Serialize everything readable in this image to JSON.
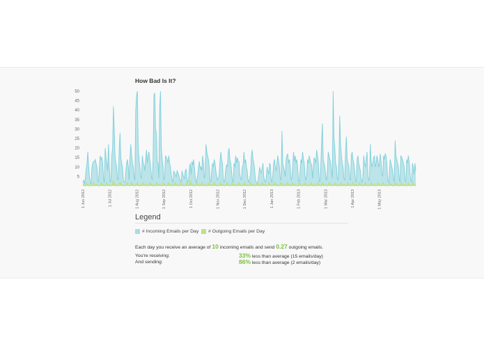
{
  "title": "How Bad Is It?",
  "legend": {
    "heading": "Legend",
    "incoming_label": "# Incoming Emails per Day",
    "outgoing_label": "# Outgoing Emails per Day"
  },
  "summary": {
    "prefix": "Each day you receive an average of ",
    "incoming_avg": "10",
    "middle": " incoming emails and send ",
    "outgoing_avg": "0.27",
    "suffix": " outgoing emails."
  },
  "stats": {
    "receiving_label": "You're receiving:",
    "receiving_pct": "33%",
    "receiving_text": " less than average (15 emails/day)",
    "sending_label": "And sending:",
    "sending_pct": "86%",
    "sending_text": " less than average (2 emails/day)"
  },
  "colors": {
    "incoming_fill": "#a8dde4",
    "incoming_line": "#7fd0dc",
    "outgoing": "#bfe08a",
    "highlight": "#7cbf3c"
  },
  "chart_data": {
    "type": "area",
    "title": "How Bad Is It?",
    "xlabel": "",
    "ylabel": "",
    "ylim": [
      0,
      50
    ],
    "yticks": [
      5,
      10,
      15,
      20,
      25,
      30,
      35,
      40,
      45,
      50
    ],
    "x_tick_labels": [
      "1 Jun 2012",
      "1 Jul 2012",
      "1 Aug 2012",
      "1 Sep 2012",
      "1 Oct 2012",
      "1 Nov 2012",
      "1 Dec 2012",
      "1 Jan 2013",
      "1 Feb 2013",
      "1 Mar 2013",
      "1 Apr 2013",
      "1 May 2013"
    ],
    "grid": false,
    "series": [
      {
        "name": "# Incoming Emails per Day",
        "color": "#7fd0dc",
        "values": [
          2,
          3,
          1,
          4,
          9,
          12,
          18,
          10,
          5,
          2,
          1,
          10,
          12,
          13,
          13,
          14,
          12,
          10,
          3,
          2,
          10,
          16,
          14,
          15,
          12,
          4,
          2,
          20,
          15,
          12,
          8,
          22,
          10,
          2,
          3,
          16,
          20,
          42,
          30,
          15,
          12,
          10,
          3,
          4,
          20,
          28,
          15,
          12,
          10,
          3,
          2,
          2,
          8,
          12,
          14,
          10,
          3,
          15,
          22,
          16,
          12,
          10,
          5,
          3,
          40,
          48,
          50,
          20,
          14,
          10,
          5,
          4,
          16,
          12,
          11,
          8,
          14,
          19,
          12,
          16,
          18,
          14,
          10,
          5,
          3,
          14,
          48,
          49,
          30,
          28,
          13,
          12,
          4,
          42,
          50,
          20,
          14,
          10,
          3,
          5,
          16,
          15,
          14,
          12,
          16,
          12,
          10,
          6,
          3,
          2,
          8,
          7,
          6,
          5,
          8,
          7,
          6,
          4,
          3,
          2,
          8,
          6,
          5,
          4,
          8,
          9,
          4,
          2,
          3,
          10,
          12,
          6,
          13,
          11,
          14,
          10,
          5,
          2,
          3,
          6,
          10,
          13,
          9,
          10,
          8,
          16,
          12,
          4,
          6,
          22,
          18,
          16,
          14,
          10,
          3,
          2,
          8,
          12,
          10,
          14,
          12,
          8,
          5,
          3,
          4,
          6,
          13,
          18,
          14,
          12,
          3,
          2,
          4,
          9,
          11,
          10,
          18,
          20,
          14,
          12,
          8,
          3,
          2,
          12,
          10,
          16,
          12,
          15,
          13,
          13,
          6,
          4,
          3,
          10,
          11,
          18,
          12,
          14,
          10,
          8,
          3,
          2,
          4,
          6,
          16,
          19,
          14,
          12,
          8,
          3,
          2,
          1,
          3,
          6,
          10,
          8,
          7,
          9,
          12,
          5,
          3,
          2,
          4,
          10,
          8,
          6,
          12,
          11,
          3,
          2,
          6,
          12,
          14,
          10,
          8,
          12,
          16,
          13,
          10,
          3,
          4,
          29,
          12,
          10,
          8,
          5,
          14,
          16,
          17,
          12,
          14,
          10,
          3,
          4,
          10,
          18,
          13,
          16,
          12,
          14,
          10,
          3,
          2,
          8,
          14,
          12,
          18,
          14,
          12,
          5,
          3,
          6,
          14,
          12,
          16,
          14,
          12,
          11,
          4,
          10,
          15,
          14,
          12,
          19,
          16,
          13,
          3,
          2,
          10,
          23,
          33,
          14,
          12,
          10,
          5,
          3,
          8,
          18,
          16,
          14,
          12,
          8,
          4,
          50,
          25,
          20,
          12,
          10,
          4,
          3,
          14,
          37,
          22,
          16,
          12,
          10,
          4,
          3,
          18,
          26,
          14,
          12,
          10,
          4,
          3,
          16,
          18,
          14,
          12,
          8,
          3,
          2,
          14,
          16,
          12,
          10,
          8,
          3,
          2,
          5,
          16,
          12,
          10,
          14,
          18,
          6,
          3,
          4,
          22,
          13,
          10,
          12,
          15,
          16,
          10,
          12,
          16,
          14,
          10,
          12,
          17,
          13,
          6,
          5,
          16,
          14,
          17,
          16,
          12,
          3,
          2,
          6,
          14,
          12,
          10,
          8,
          4,
          2,
          24,
          16,
          14,
          12,
          10,
          4,
          2,
          16,
          15,
          14,
          12,
          10,
          3,
          2,
          14,
          12,
          16,
          13,
          7,
          3,
          2,
          12,
          10,
          6,
          12,
          8
        ]
      },
      {
        "name": "# Outgoing Emails per Day",
        "color": "#bfe08a",
        "values": [
          0,
          1,
          0,
          0,
          2,
          1,
          1,
          0,
          0,
          1,
          0,
          0,
          1,
          2,
          1,
          0,
          1,
          1,
          0,
          0,
          0,
          1,
          2,
          1,
          1,
          0,
          0,
          1,
          2,
          1,
          0,
          1,
          1,
          0,
          0,
          1,
          3,
          2,
          1,
          0,
          1,
          0,
          0,
          1,
          2,
          2,
          1,
          0,
          1,
          0,
          0,
          1,
          1,
          2,
          1,
          0,
          0,
          1,
          2,
          1,
          1,
          0,
          0,
          1,
          1,
          2,
          1,
          0,
          0,
          1,
          0,
          1,
          2,
          1,
          0,
          1,
          1,
          0,
          0,
          1,
          2,
          1,
          1,
          0,
          1,
          0,
          0,
          1,
          2,
          1,
          0,
          1,
          1,
          0,
          0,
          1,
          2,
          1,
          1,
          0,
          0,
          1,
          2,
          1,
          0,
          1,
          1,
          0,
          0,
          1,
          2,
          1,
          1,
          0,
          0,
          1,
          1,
          2,
          1,
          0,
          1,
          0,
          0,
          1,
          2,
          1,
          0,
          1,
          3,
          2,
          1,
          0,
          1,
          0,
          0,
          1,
          2,
          1,
          1,
          0,
          0,
          1,
          2,
          1,
          0,
          1,
          1,
          0,
          0,
          1,
          2,
          1,
          1,
          0,
          0,
          1,
          1,
          2,
          1,
          0,
          1,
          0,
          0,
          1,
          2,
          1,
          0,
          1,
          1,
          0,
          0,
          1,
          2,
          1,
          1,
          0,
          0,
          1,
          2,
          1,
          0,
          1,
          1,
          0,
          0,
          1,
          2,
          1,
          1,
          0,
          0,
          1,
          1,
          2,
          1,
          0,
          1,
          0,
          0,
          1,
          2,
          1,
          0,
          1,
          1,
          0,
          0,
          1,
          2,
          1,
          1,
          0,
          0,
          1,
          2,
          1,
          0,
          1,
          1,
          0,
          0,
          1,
          2,
          1,
          1,
          0,
          0,
          1,
          1,
          2,
          1,
          0,
          1,
          0,
          0,
          1,
          2,
          1,
          0,
          1,
          1,
          0,
          0,
          1,
          2,
          1,
          1,
          0,
          0,
          1,
          2,
          1,
          0,
          1,
          1,
          0,
          0,
          1,
          2,
          1,
          1,
          0,
          0,
          1,
          1,
          2,
          1,
          0,
          1,
          0,
          0,
          1,
          2,
          1,
          0,
          1,
          1,
          0,
          0,
          1,
          2,
          1,
          1,
          0,
          0,
          1,
          2,
          1,
          0,
          1,
          1,
          0,
          0,
          1,
          2,
          1,
          1,
          0,
          0,
          1,
          1,
          2,
          1,
          0,
          1,
          0,
          0,
          1,
          2,
          1,
          0,
          1,
          1,
          0,
          0,
          1,
          2,
          1,
          1,
          0,
          0,
          1,
          2,
          1,
          0,
          1,
          1,
          0,
          0,
          1,
          2,
          1,
          1,
          0,
          0,
          1,
          1,
          2,
          1,
          0,
          1,
          0,
          0,
          1,
          2,
          1,
          0,
          1,
          1,
          0,
          0,
          1,
          2,
          1,
          1,
          0,
          0,
          1,
          2,
          1,
          0,
          1,
          1,
          0,
          0,
          1,
          2,
          1,
          1,
          0,
          0,
          1,
          1,
          2,
          1,
          0,
          1,
          0,
          0,
          1,
          2,
          1,
          0,
          1,
          1,
          0,
          0,
          1,
          2,
          1,
          1,
          0,
          0,
          1,
          2,
          1,
          0,
          1
        ]
      }
    ]
  }
}
